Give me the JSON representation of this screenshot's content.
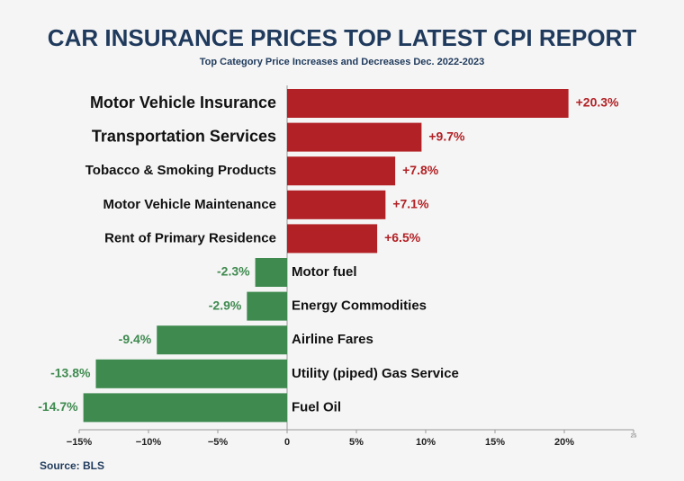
{
  "chart_data": {
    "type": "hbar",
    "title": "CAR INSURANCE PRICES TOP LATEST CPI REPORT",
    "subtitle": "Top Category Price Increases and Decreases Dec. 2022-2023",
    "source": "Source: BLS",
    "categories": [
      "Motor Vehicle Insurance",
      "Transportation Services",
      "Tobacco & Smoking Products",
      "Motor Vehicle Maintenance",
      "Rent of Primary Residence",
      "Motor fuel",
      "Energy Commodities",
      "Airline Fares",
      "Utility (piped) Gas Service",
      "Fuel Oil"
    ],
    "values": [
      20.3,
      9.7,
      7.8,
      7.1,
      6.5,
      -2.3,
      -2.9,
      -9.4,
      -13.8,
      -14.7
    ],
    "value_labels": [
      "+20.3%",
      "+9.7%",
      "+7.8%",
      "+7.1%",
      "+6.5%",
      "-2.3%",
      "-2.9%",
      "-9.4%",
      "-13.8%",
      "-14.7%"
    ],
    "colors": {
      "positive": "#b22125",
      "negative": "#3e8a4f"
    },
    "xlim": [
      -15,
      25
    ],
    "xticks": [
      {
        "value": -15,
        "label": "−15%"
      },
      {
        "value": -10,
        "label": "−10%"
      },
      {
        "value": -5,
        "label": "−5%"
      },
      0,
      {
        "value": 5,
        "label": "5%"
      },
      {
        "value": 10,
        "label": "10%"
      },
      {
        "value": 15,
        "label": "15%"
      },
      {
        "value": 20,
        "label": "20%"
      },
      25
    ]
  }
}
